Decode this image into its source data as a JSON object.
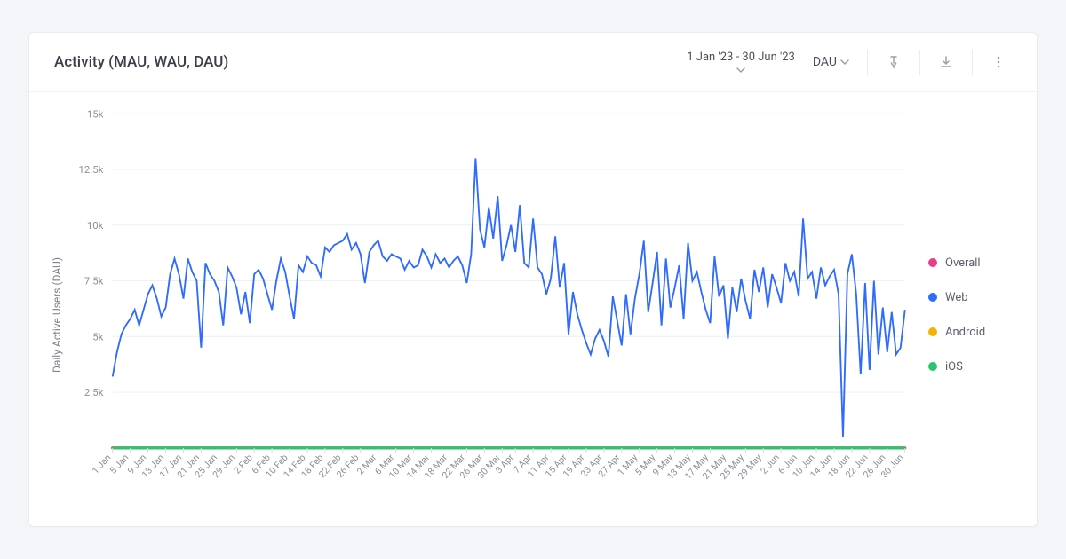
{
  "header": {
    "title": "Activity (MAU, WAU, DAU)",
    "date_range": "1 Jan '23 - 30 Jun '23",
    "metric": "DAU"
  },
  "legend": [
    {
      "key": "overall",
      "label": "Overall",
      "color": "#e83e8c"
    },
    {
      "key": "web",
      "label": "Web",
      "color": "#2f6bff"
    },
    {
      "key": "android",
      "label": "Android",
      "color": "#f5b301"
    },
    {
      "key": "ios",
      "label": "iOS",
      "color": "#28c76f"
    }
  ],
  "chart": {
    "type": "line",
    "y_label": "Daily Active Users (DAU)",
    "y_min": 0,
    "y_max": 15000,
    "y_ticks": [
      2500,
      5000,
      7500,
      10000,
      12500,
      15000
    ],
    "y_tick_labels": [
      "2.5k",
      "5k",
      "7.5k",
      "10k",
      "12.5k",
      "15k"
    ],
    "background_color": "#ffffff",
    "grid_color": "#eef0f3",
    "axis_color": "#d9dde3",
    "x_labels": [
      "1 Jan",
      "5 Jan",
      "9 Jan",
      "13 Jan",
      "17 Jan",
      "21 Jan",
      "25 Jan",
      "29 Jan",
      "2 Feb",
      "6 Feb",
      "10 Feb",
      "14 Feb",
      "18 Feb",
      "22 Feb",
      "26 Feb",
      "2 Mar",
      "6 Mar",
      "10 Mar",
      "14 Mar",
      "18 Mar",
      "22 Mar",
      "26 Mar",
      "30 Mar",
      "3 Apr",
      "7 Apr",
      "11 Apr",
      "15 Apr",
      "19 Apr",
      "23 Apr",
      "27 Apr",
      "1 May",
      "5 May",
      "9 May",
      "13 May",
      "17 May",
      "21 May",
      "25 May",
      "29 May",
      "2 Jun",
      "6 Jun",
      "10 Jun",
      "14 Jun",
      "18 Jun",
      "22 Jun",
      "26 Jun",
      "30 Jun"
    ],
    "baseline_series": [
      "overall",
      "android",
      "ios"
    ],
    "series": {
      "web": {
        "color": "#2f6bff",
        "values": [
          3200,
          4300,
          5100,
          5500,
          5800,
          6200,
          5500,
          6200,
          6900,
          7300,
          6700,
          5900,
          6300,
          7800,
          8500,
          7800,
          6700,
          8500,
          7900,
          7500,
          4500,
          8300,
          7800,
          7500,
          7000,
          5500,
          8100,
          7700,
          7200,
          6000,
          7000,
          5600,
          7800,
          8000,
          7600,
          6900,
          6200,
          7500,
          8500,
          7900,
          6800,
          5800,
          8200,
          7900,
          8600,
          8300,
          8200,
          7700,
          9000,
          8800,
          9100,
          9200,
          9300,
          9600,
          8900,
          9200,
          8700,
          7400,
          8800,
          9100,
          9300,
          8600,
          8400,
          8700,
          8600,
          8500,
          8000,
          8400,
          8100,
          8200,
          8900,
          8600,
          8100,
          8700,
          8300,
          8500,
          8100,
          8400,
          8600,
          8200,
          7400,
          8700,
          13000,
          9800,
          9000,
          10800,
          9400,
          11300,
          8400,
          9100,
          10000,
          8800,
          10900,
          8300,
          8100,
          10300,
          8100,
          7800,
          6900,
          7600,
          9500,
          7200,
          8300,
          5100,
          7000,
          6000,
          5300,
          4700,
          4200,
          4900,
          5300,
          4800,
          4100,
          6800,
          5700,
          4600,
          6900,
          5100,
          6700,
          7800,
          9300,
          6100,
          7400,
          8800,
          5500,
          8500,
          6300,
          7200,
          8200,
          5800,
          9200,
          7500,
          7900,
          7000,
          6200,
          5600,
          8600,
          6800,
          7300,
          4900,
          7200,
          6100,
          7600,
          6600,
          5800,
          8000,
          7000,
          8100,
          6300,
          7800,
          7200,
          6500,
          8300,
          7500,
          7900,
          6800,
          10300,
          7600,
          7900,
          6700,
          8100,
          7300,
          7700,
          8000,
          6900,
          500,
          7800,
          8700,
          6900,
          3300,
          7400,
          3500,
          7500,
          4200,
          6300,
          4300,
          6100,
          4200,
          4500,
          6200
        ]
      }
    }
  },
  "colors": {
    "page_bg": "#f4f5f8",
    "card_bg": "#ffffff",
    "border": "#e9ecef",
    "text_primary": "#3a3f4a",
    "text_muted": "#8a8f99",
    "icon_muted": "#9aa0ab"
  }
}
